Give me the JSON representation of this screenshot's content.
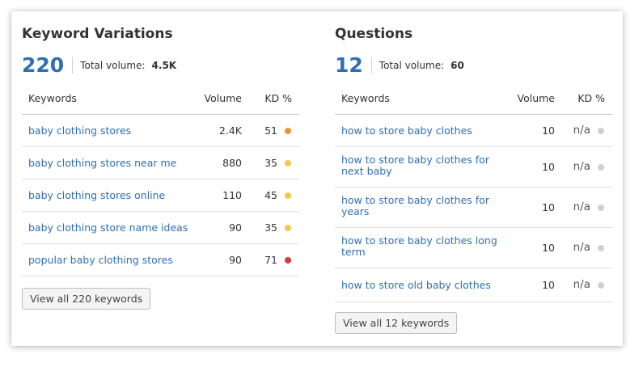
{
  "variations": {
    "title": "Keyword Variations",
    "count": "220",
    "total_volume_label": "Total volume:",
    "total_volume_value": "4.5K",
    "columns": {
      "keywords": "Keywords",
      "volume": "Volume",
      "kd": "KD %"
    },
    "rows": [
      {
        "keyword": "baby clothing stores",
        "volume": "2.4K",
        "kd": "51",
        "dot_color": "#e8943a"
      },
      {
        "keyword": "baby clothing stores near me",
        "volume": "880",
        "kd": "35",
        "dot_color": "#f2c94c"
      },
      {
        "keyword": "baby clothing stores online",
        "volume": "110",
        "kd": "45",
        "dot_color": "#f2c94c"
      },
      {
        "keyword": "baby clothing store name ideas",
        "volume": "90",
        "kd": "35",
        "dot_color": "#f2c94c"
      },
      {
        "keyword": "popular baby clothing stores",
        "volume": "90",
        "kd": "71",
        "dot_color": "#d9363e"
      }
    ],
    "button_label": "View all 220 keywords"
  },
  "questions": {
    "title": "Questions",
    "count": "12",
    "total_volume_label": "Total volume:",
    "total_volume_value": "60",
    "columns": {
      "keywords": "Keywords",
      "volume": "Volume",
      "kd": "KD %"
    },
    "rows": [
      {
        "keyword": "how to store baby clothes",
        "volume": "10",
        "kd": "n/a",
        "dot_color": "#d0d0d0"
      },
      {
        "keyword": "how to store baby clothes for next baby",
        "volume": "10",
        "kd": "n/a",
        "dot_color": "#d0d0d0"
      },
      {
        "keyword": "how to store baby clothes for years",
        "volume": "10",
        "kd": "n/a",
        "dot_color": "#d0d0d0"
      },
      {
        "keyword": "how to store baby clothes long term",
        "volume": "10",
        "kd": "n/a",
        "dot_color": "#d0d0d0"
      },
      {
        "keyword": "how to store old baby clothes",
        "volume": "10",
        "kd": "n/a",
        "dot_color": "#d0d0d0"
      }
    ],
    "button_label": "View all 12 keywords"
  }
}
